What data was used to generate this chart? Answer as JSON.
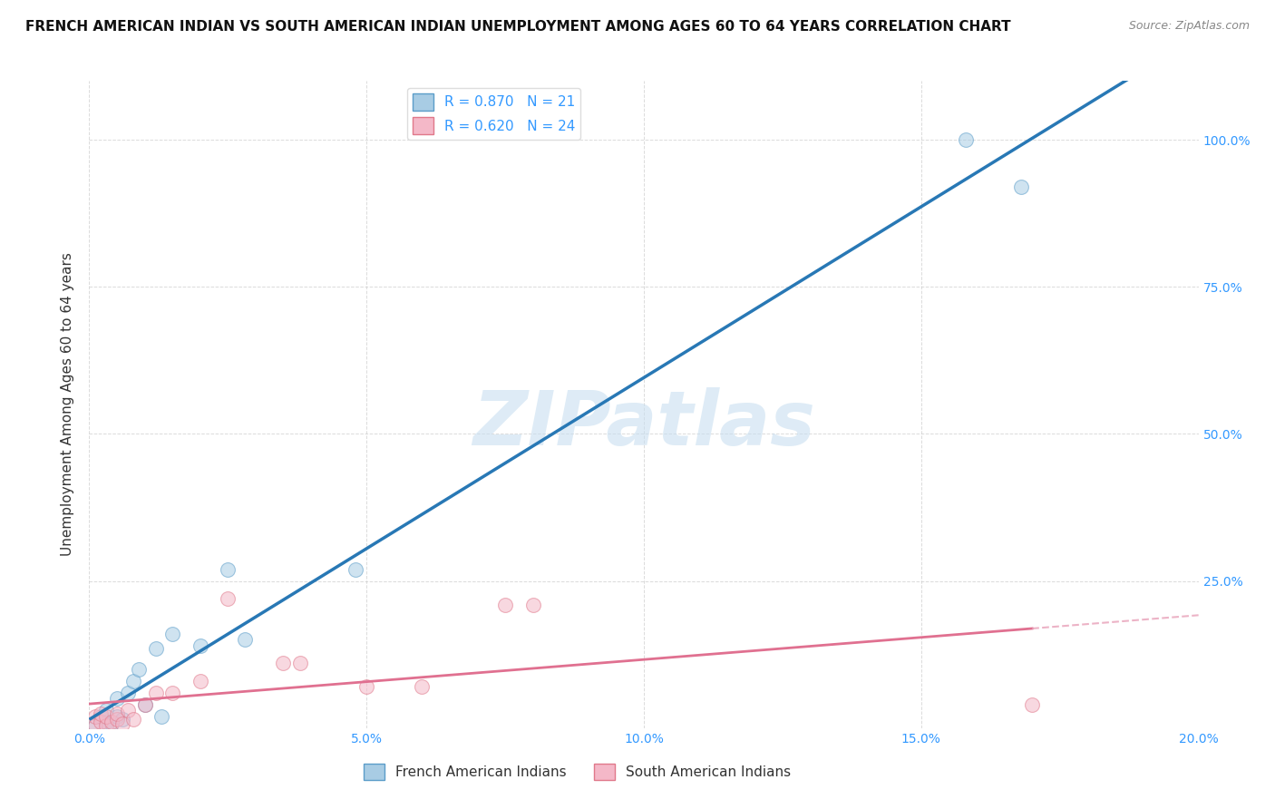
{
  "title": "FRENCH AMERICAN INDIAN VS SOUTH AMERICAN INDIAN UNEMPLOYMENT AMONG AGES 60 TO 64 YEARS CORRELATION CHART",
  "source": "Source: ZipAtlas.com",
  "ylabel": "Unemployment Among Ages 60 to 64 years",
  "xlim": [
    0.0,
    0.2
  ],
  "ylim": [
    0.0,
    1.1
  ],
  "xticks": [
    0.0,
    0.05,
    0.1,
    0.15,
    0.2
  ],
  "yticks": [
    0.0,
    0.25,
    0.5,
    0.75,
    1.0
  ],
  "xticklabels": [
    "0.0%",
    "5.0%",
    "10.0%",
    "15.0%",
    "20.0%"
  ],
  "yticklabels_right": [
    "",
    "25.0%",
    "50.0%",
    "75.0%",
    "100.0%"
  ],
  "blue_scatter_x": [
    0.001,
    0.002,
    0.003,
    0.003,
    0.004,
    0.005,
    0.005,
    0.006,
    0.007,
    0.008,
    0.009,
    0.01,
    0.012,
    0.013,
    0.015,
    0.02,
    0.025,
    0.028,
    0.048,
    0.158,
    0.168
  ],
  "blue_scatter_y": [
    0.005,
    0.02,
    0.01,
    0.03,
    0.008,
    0.02,
    0.05,
    0.015,
    0.06,
    0.08,
    0.1,
    0.04,
    0.135,
    0.02,
    0.16,
    0.14,
    0.27,
    0.15,
    0.27,
    1.0,
    0.92
  ],
  "pink_scatter_x": [
    0.001,
    0.001,
    0.002,
    0.002,
    0.003,
    0.003,
    0.004,
    0.005,
    0.005,
    0.006,
    0.007,
    0.008,
    0.01,
    0.012,
    0.015,
    0.02,
    0.025,
    0.035,
    0.038,
    0.05,
    0.06,
    0.075,
    0.08,
    0.17
  ],
  "pink_scatter_y": [
    0.005,
    0.02,
    0.01,
    0.025,
    0.005,
    0.02,
    0.01,
    0.015,
    0.025,
    0.008,
    0.03,
    0.015,
    0.04,
    0.06,
    0.06,
    0.08,
    0.22,
    0.11,
    0.11,
    0.07,
    0.07,
    0.21,
    0.21,
    0.04
  ],
  "blue_R": 0.87,
  "blue_N": 21,
  "pink_R": 0.62,
  "pink_N": 24,
  "blue_dot_color": "#a8cce4",
  "blue_dot_edge": "#5b9dc9",
  "blue_line_color": "#2878b5",
  "pink_dot_color": "#f4b8c8",
  "pink_dot_edge": "#e0788a",
  "pink_line_color": "#e07090",
  "pink_dash_color": "#e8a0b8",
  "legend_label_blue": "French American Indians",
  "legend_label_pink": "South American Indians",
  "watermark_text": "ZIPatlas",
  "watermark_color": "#c8dff0",
  "background_color": "#ffffff",
  "grid_color": "#cccccc",
  "tick_color": "#3399ff",
  "title_fontsize": 11,
  "axis_label_fontsize": 11,
  "tick_fontsize": 10,
  "source_text": "Source: ZipAtlas.com"
}
